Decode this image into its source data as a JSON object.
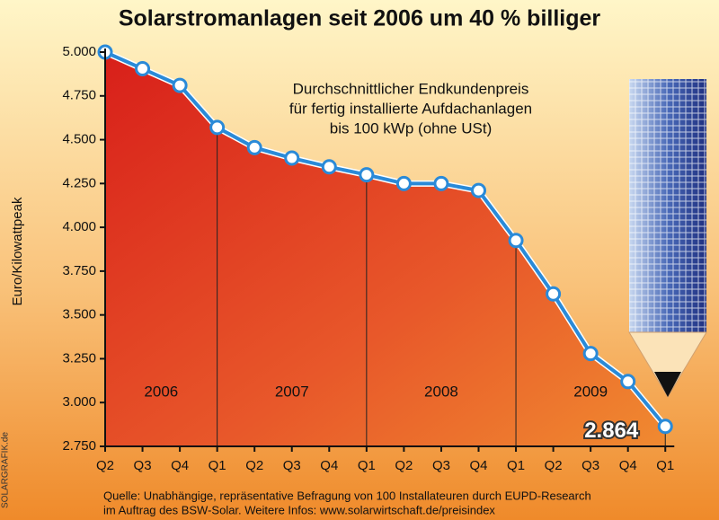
{
  "chart_data": {
    "type": "line",
    "title": "Solarstromanlagen seit 2006 um 40 % billiger",
    "subtitle": [
      "Durchschnittlicher Endkundenpreis",
      "für fertig installierte Aufdachanlagen",
      "bis 100 kWp (ohne USt)"
    ],
    "y_label": "Euro/Kilowattpeak",
    "categories": [
      "Q2",
      "Q3",
      "Q4",
      "Q1",
      "Q2",
      "Q3",
      "Q4",
      "Q1",
      "Q2",
      "Q3",
      "Q4",
      "Q1",
      "Q2",
      "Q3",
      "Q4",
      "Q1"
    ],
    "values": [
      5000,
      4905,
      4810,
      4570,
      4455,
      4395,
      4345,
      4300,
      4250,
      4250,
      4210,
      3925,
      3620,
      3280,
      3120,
      2864
    ],
    "value_labels": [
      null,
      null,
      null,
      null,
      null,
      null,
      null,
      null,
      null,
      null,
      null,
      null,
      null,
      null,
      null,
      "2.864"
    ],
    "annotations": [
      "2006",
      "2007",
      "2008",
      "2009"
    ],
    "color": "#2a8ad8",
    "ylim": [
      2750,
      5000
    ],
    "yticks": [
      {
        "value": 2750,
        "label": "2.750"
      },
      {
        "value": 3000,
        "label": "3.000"
      },
      {
        "value": 3250,
        "label": "3.250"
      },
      {
        "value": 3500,
        "label": "3.500"
      },
      {
        "value": 3750,
        "label": "3.750"
      },
      {
        "value": 4000,
        "label": "4.000"
      },
      {
        "value": 4250,
        "label": "4.250"
      },
      {
        "value": 4500,
        "label": "4.500"
      },
      {
        "value": 4750,
        "label": "4.750"
      },
      {
        "value": 5000,
        "label": "5.000"
      }
    ],
    "source": [
      "Quelle: Unabhängige, repräsentative Befragung von 100 Installateuren durch EUPD-Research",
      "im Auftrag des BSW-Solar. Weitere Infos: www.solarwirtschaft.de/preisindex"
    ],
    "credit": "SOLARGRAFIK.de"
  }
}
